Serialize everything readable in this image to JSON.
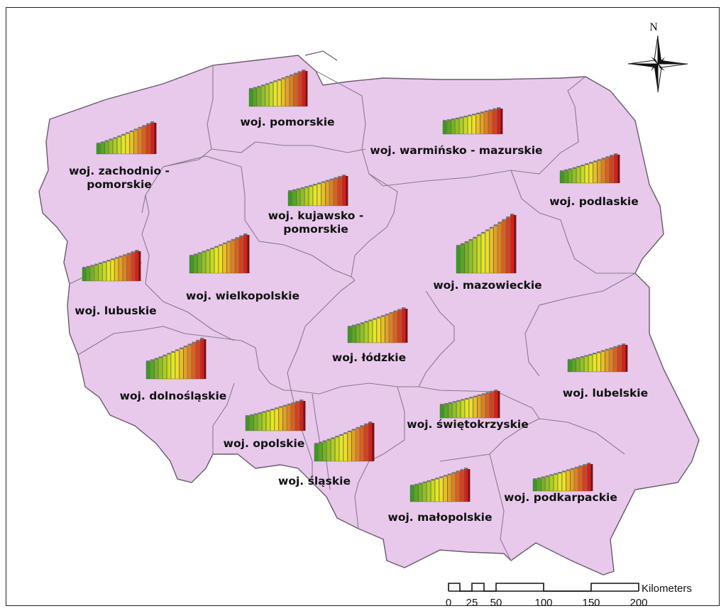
{
  "colors": {
    "land": "#e8c9ec",
    "border": "#8a7a8c",
    "bar_low": "#3a9a1e",
    "bar_mid": "#f2f01c",
    "bar_high": "#d4201a"
  },
  "north_arrow": {
    "label": "N",
    "icon": "compass-rose-icon"
  },
  "scale_bar": {
    "unit": "Kilometers",
    "ticks": [
      "0",
      "25",
      "50",
      "100",
      "150",
      "200"
    ]
  },
  "regions": [
    {
      "id": "zachodniopomorskie",
      "label_lines": [
        "woj. zachodnio -",
        "pomorskie"
      ]
    },
    {
      "id": "pomorskie",
      "label_lines": [
        "woj. pomorskie"
      ]
    },
    {
      "id": "warminsko-mazurskie",
      "label_lines": [
        "woj. warmińsko - mazurskie"
      ]
    },
    {
      "id": "podlaskie",
      "label_lines": [
        "woj. podlaskie"
      ]
    },
    {
      "id": "kujawsko-pomorskie",
      "label_lines": [
        "woj. kujawsko -",
        "pomorskie"
      ]
    },
    {
      "id": "lubuskie",
      "label_lines": [
        "woj. lubuskie"
      ]
    },
    {
      "id": "wielkopolskie",
      "label_lines": [
        "woj. wielkopolskie"
      ]
    },
    {
      "id": "mazowieckie",
      "label_lines": [
        "woj. mazowieckie"
      ]
    },
    {
      "id": "lodzkie",
      "label_lines": [
        "woj. łódzkie"
      ]
    },
    {
      "id": "lubelskie",
      "label_lines": [
        "woj. lubelskie"
      ]
    },
    {
      "id": "dolnoslaskie",
      "label_lines": [
        "woj. dolnośląskie"
      ]
    },
    {
      "id": "opolskie",
      "label_lines": [
        "woj. opolskie"
      ]
    },
    {
      "id": "swietokrzyskie",
      "label_lines": [
        "woj. świętokrzyskie"
      ]
    },
    {
      "id": "slaskie",
      "label_lines": [
        "woj. śląskie"
      ]
    },
    {
      "id": "malopolskie",
      "label_lines": [
        "woj. małopolskie"
      ]
    },
    {
      "id": "podkarpackie",
      "label_lines": [
        "woj. podkarpackie"
      ]
    }
  ]
}
